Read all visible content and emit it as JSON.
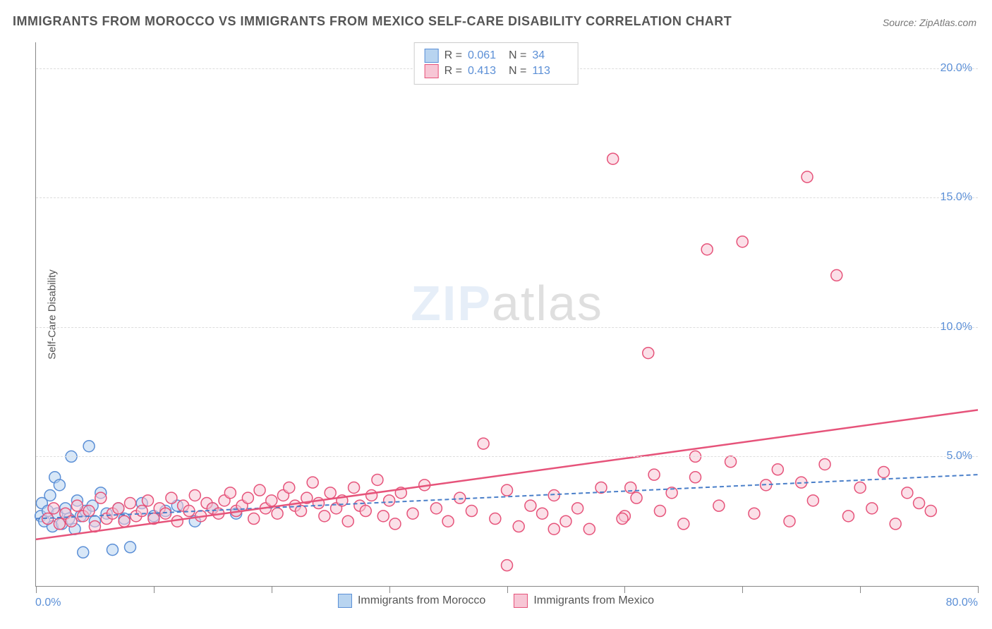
{
  "chart": {
    "title": "IMMIGRANTS FROM MOROCCO VS IMMIGRANTS FROM MEXICO SELF-CARE DISABILITY CORRELATION CHART",
    "source": "Source: ZipAtlas.com",
    "watermark_zip": "ZIP",
    "watermark_atlas": "atlas",
    "type": "scatter",
    "y_axis_label": "Self-Care Disability",
    "xlim": [
      0,
      80
    ],
    "ylim": [
      0,
      21
    ],
    "x_start_label": "0.0%",
    "x_end_label": "80.0%",
    "y_ticks": [
      {
        "v": 5,
        "label": "5.0%"
      },
      {
        "v": 10,
        "label": "10.0%"
      },
      {
        "v": 15,
        "label": "15.0%"
      },
      {
        "v": 20,
        "label": "20.0%"
      }
    ],
    "x_tick_positions": [
      0,
      10,
      20,
      30,
      40,
      50,
      60,
      70,
      80
    ],
    "grid_color": "#dddddd",
    "axis_color": "#888888",
    "background_color": "#ffffff",
    "tick_label_color": "#5b8fd6",
    "marker_radius": 8,
    "marker_stroke_width": 1.5,
    "series": [
      {
        "name": "Immigrants from Morocco",
        "fill_color": "#b8d4f0",
        "stroke_color": "#5b8fd6",
        "trend_color": "#4a7fc9",
        "trend_width": 2,
        "trend_dash": "6,4",
        "R_label": "R =",
        "R": "0.061",
        "N_label": "N =",
        "N": "34",
        "trend": {
          "x1": 0,
          "y1": 2.6,
          "x2": 80,
          "y2": 4.3
        },
        "points": [
          [
            0.4,
            2.7
          ],
          [
            0.5,
            3.2
          ],
          [
            0.7,
            2.5
          ],
          [
            1.0,
            2.9
          ],
          [
            1.2,
            3.5
          ],
          [
            1.4,
            2.3
          ],
          [
            1.6,
            4.2
          ],
          [
            1.8,
            2.8
          ],
          [
            2.0,
            3.9
          ],
          [
            2.2,
            2.4
          ],
          [
            2.5,
            3.0
          ],
          [
            2.8,
            2.6
          ],
          [
            3.0,
            5.0
          ],
          [
            3.3,
            2.2
          ],
          [
            3.5,
            3.3
          ],
          [
            3.8,
            2.7
          ],
          [
            4.0,
            1.3
          ],
          [
            4.2,
            2.9
          ],
          [
            4.5,
            5.4
          ],
          [
            4.8,
            3.1
          ],
          [
            5.0,
            2.5
          ],
          [
            5.5,
            3.6
          ],
          [
            6.0,
            2.8
          ],
          [
            6.5,
            1.4
          ],
          [
            7.0,
            3.0
          ],
          [
            7.5,
            2.6
          ],
          [
            8.0,
            1.5
          ],
          [
            9.0,
            3.2
          ],
          [
            10.0,
            2.7
          ],
          [
            11.0,
            2.9
          ],
          [
            12.0,
            3.1
          ],
          [
            13.5,
            2.5
          ],
          [
            15.0,
            3.0
          ],
          [
            17.0,
            2.8
          ]
        ]
      },
      {
        "name": "Immigrants from Mexico",
        "fill_color": "#f7c6d5",
        "stroke_color": "#e6537a",
        "trend_color": "#e6537a",
        "trend_width": 2.5,
        "trend_dash": "",
        "R_label": "R =",
        "R": "0.413",
        "N_label": "N =",
        "N": "113",
        "trend": {
          "x1": 0,
          "y1": 1.8,
          "x2": 80,
          "y2": 6.8
        },
        "points": [
          [
            1.0,
            2.6
          ],
          [
            1.5,
            3.0
          ],
          [
            2.0,
            2.4
          ],
          [
            2.5,
            2.8
          ],
          [
            3.0,
            2.5
          ],
          [
            3.5,
            3.1
          ],
          [
            4.0,
            2.7
          ],
          [
            4.5,
            2.9
          ],
          [
            5.0,
            2.3
          ],
          [
            5.5,
            3.4
          ],
          [
            6.0,
            2.6
          ],
          [
            6.5,
            2.8
          ],
          [
            7.0,
            3.0
          ],
          [
            7.5,
            2.5
          ],
          [
            8.0,
            3.2
          ],
          [
            8.5,
            2.7
          ],
          [
            9.0,
            2.9
          ],
          [
            9.5,
            3.3
          ],
          [
            10.0,
            2.6
          ],
          [
            10.5,
            3.0
          ],
          [
            11.0,
            2.8
          ],
          [
            11.5,
            3.4
          ],
          [
            12.0,
            2.5
          ],
          [
            12.5,
            3.1
          ],
          [
            13.0,
            2.9
          ],
          [
            13.5,
            3.5
          ],
          [
            14.0,
            2.7
          ],
          [
            14.5,
            3.2
          ],
          [
            15.0,
            3.0
          ],
          [
            15.5,
            2.8
          ],
          [
            16.0,
            3.3
          ],
          [
            16.5,
            3.6
          ],
          [
            17.0,
            2.9
          ],
          [
            17.5,
            3.1
          ],
          [
            18.0,
            3.4
          ],
          [
            18.5,
            2.6
          ],
          [
            19.0,
            3.7
          ],
          [
            19.5,
            3.0
          ],
          [
            20.0,
            3.3
          ],
          [
            20.5,
            2.8
          ],
          [
            21.0,
            3.5
          ],
          [
            21.5,
            3.8
          ],
          [
            22.0,
            3.1
          ],
          [
            22.5,
            2.9
          ],
          [
            23.0,
            3.4
          ],
          [
            23.5,
            4.0
          ],
          [
            24.0,
            3.2
          ],
          [
            24.5,
            2.7
          ],
          [
            25.0,
            3.6
          ],
          [
            25.5,
            3.0
          ],
          [
            26.0,
            3.3
          ],
          [
            26.5,
            2.5
          ],
          [
            27.0,
            3.8
          ],
          [
            27.5,
            3.1
          ],
          [
            28.0,
            2.9
          ],
          [
            28.5,
            3.5
          ],
          [
            29.0,
            4.1
          ],
          [
            29.5,
            2.7
          ],
          [
            30.0,
            3.3
          ],
          [
            30.5,
            2.4
          ],
          [
            31.0,
            3.6
          ],
          [
            32.0,
            2.8
          ],
          [
            33.0,
            3.9
          ],
          [
            34.0,
            3.0
          ],
          [
            35.0,
            2.5
          ],
          [
            36.0,
            3.4
          ],
          [
            37.0,
            2.9
          ],
          [
            38.0,
            5.5
          ],
          [
            39.0,
            2.6
          ],
          [
            40.0,
            3.7
          ],
          [
            41.0,
            2.3
          ],
          [
            42.0,
            3.1
          ],
          [
            43.0,
            2.8
          ],
          [
            44.0,
            3.5
          ],
          [
            45.0,
            2.5
          ],
          [
            46.0,
            3.0
          ],
          [
            47.0,
            2.2
          ],
          [
            48.0,
            3.8
          ],
          [
            49.0,
            16.5
          ],
          [
            50.0,
            2.7
          ],
          [
            51.0,
            3.4
          ],
          [
            52.0,
            9.0
          ],
          [
            53.0,
            2.9
          ],
          [
            54.0,
            3.6
          ],
          [
            55.0,
            2.4
          ],
          [
            56.0,
            4.2
          ],
          [
            57.0,
            13.0
          ],
          [
            58.0,
            3.1
          ],
          [
            59.0,
            4.8
          ],
          [
            60.0,
            13.3
          ],
          [
            61.0,
            2.8
          ],
          [
            62.0,
            3.9
          ],
          [
            63.0,
            4.5
          ],
          [
            64.0,
            2.5
          ],
          [
            65.0,
            4.0
          ],
          [
            65.5,
            15.8
          ],
          [
            66.0,
            3.3
          ],
          [
            67.0,
            4.7
          ],
          [
            68.0,
            12.0
          ],
          [
            69.0,
            2.7
          ],
          [
            70.0,
            3.8
          ],
          [
            71.0,
            3.0
          ],
          [
            72.0,
            4.4
          ],
          [
            73.0,
            2.4
          ],
          [
            74.0,
            3.6
          ],
          [
            75.0,
            3.2
          ],
          [
            76.0,
            2.9
          ],
          [
            40.0,
            0.8
          ],
          [
            49.8,
            2.6
          ],
          [
            56.0,
            5.0
          ],
          [
            44.0,
            2.2
          ],
          [
            50.5,
            3.8
          ],
          [
            52.5,
            4.3
          ]
        ]
      }
    ]
  }
}
